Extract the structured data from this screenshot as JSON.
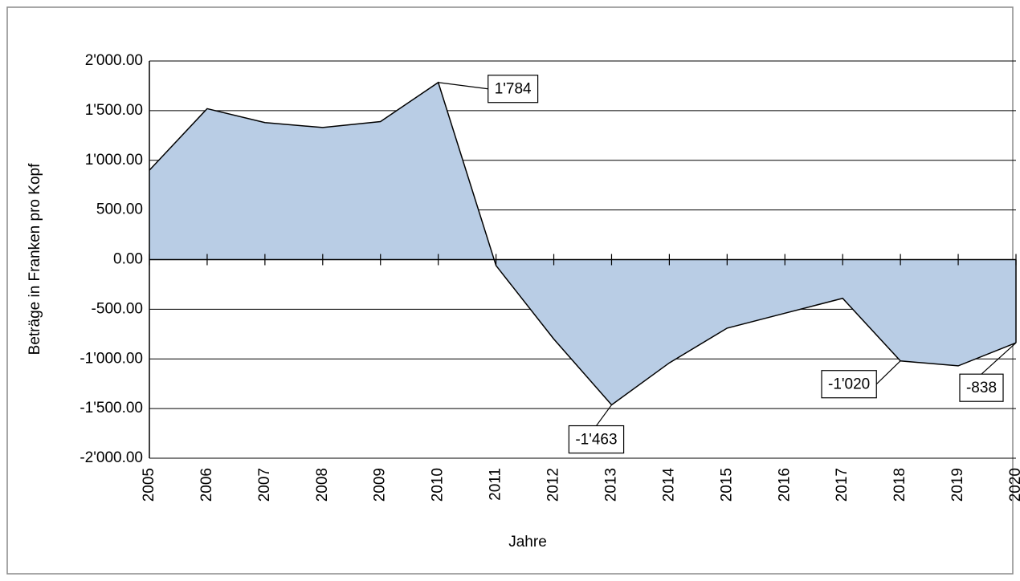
{
  "chart_data": {
    "type": "area",
    "x_label": "Jahre",
    "y_label": "Beträge in Franken pro Kopf",
    "categories": [
      "2005",
      "2006",
      "2007",
      "2008",
      "2009",
      "2010",
      "2011",
      "2012",
      "2013",
      "2014",
      "2015",
      "2016",
      "2017",
      "2018",
      "2019",
      "2020"
    ],
    "values": [
      900,
      1520,
      1380,
      1330,
      1390,
      1784,
      -60,
      -800,
      -1463,
      -1040,
      -690,
      -540,
      -390,
      -1020,
      -1070,
      -838
    ],
    "value_labels": [
      null,
      null,
      null,
      null,
      null,
      "1'784",
      null,
      null,
      "-1'463",
      null,
      null,
      null,
      null,
      "-1'020",
      null,
      "-838"
    ],
    "color": "#b9cde5",
    "ylim": [
      -2000,
      2000
    ],
    "yticks": [
      {
        "value": -2000,
        "label": "-2'000.00"
      },
      {
        "value": -1500,
        "label": "-1'500.00"
      },
      {
        "value": -1000,
        "label": "-1'000.00"
      },
      {
        "value": -500,
        "label": "-500.00"
      },
      {
        "value": 0,
        "label": "0.00"
      },
      {
        "value": 500,
        "label": "500.00"
      },
      {
        "value": 1000,
        "label": "1'000.00"
      },
      {
        "value": 1500,
        "label": "1'500.00"
      },
      {
        "value": 2000,
        "label": "2'000.00"
      }
    ],
    "grid": true
  }
}
